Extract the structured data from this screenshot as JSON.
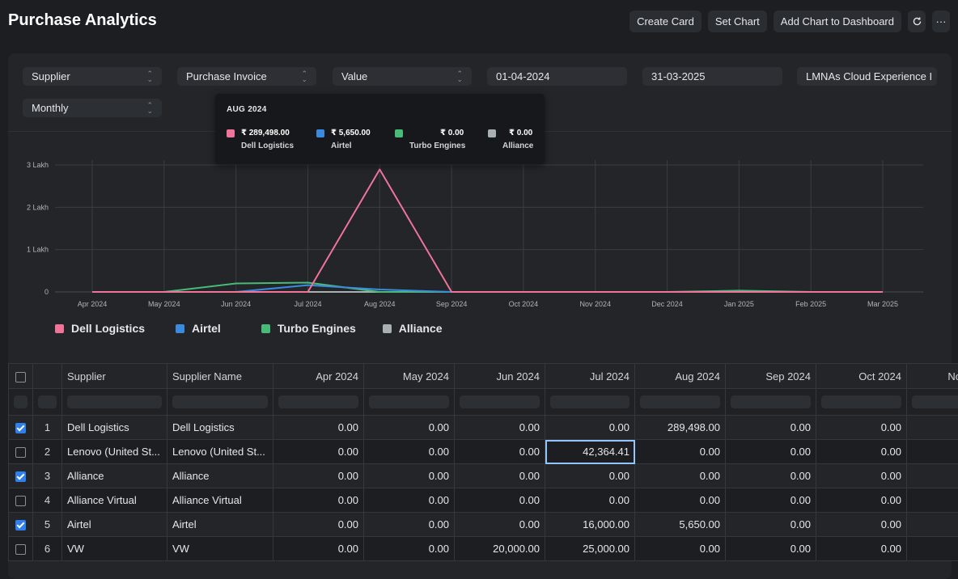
{
  "page": {
    "title": "Purchase Analytics"
  },
  "actions": {
    "create_card": "Create Card",
    "set_chart": "Set Chart",
    "add_chart": "Add Chart to Dashboard",
    "refresh_icon": "refresh-icon",
    "more": "···"
  },
  "filters": {
    "tree_type": "Supplier",
    "doc_type": "Purchase Invoice",
    "value_qty": "Value",
    "from_date": "01-04-2024",
    "to_date": "31-03-2025",
    "company": "LMNAs Cloud Experience I",
    "range": "Monthly"
  },
  "tooltip": {
    "title": "AUG 2024",
    "items": [
      {
        "value": "₹ 289,498.00",
        "name": "Dell Logistics",
        "color": "#f0739a"
      },
      {
        "value": "₹ 5,650.00",
        "name": "Airtel",
        "color": "#3a8be0"
      },
      {
        "value": "₹ 0.00",
        "name": "Turbo Engines",
        "color": "#48bb78"
      },
      {
        "value": "₹ 0.00",
        "name": "Alliance",
        "color": "#a8b0b0"
      }
    ]
  },
  "chart_data": {
    "type": "line",
    "x": [
      "Apr 2024",
      "May 2024",
      "Jun 2024",
      "Jul 2024",
      "Aug 2024",
      "Sep 2024",
      "Oct 2024",
      "Nov 2024",
      "Dec 2024",
      "Jan 2025",
      "Feb 2025",
      "Mar 2025"
    ],
    "y_ticks": [
      "0",
      "1 Lakh",
      "2 Lakh",
      "3 Lakh"
    ],
    "ylim": [
      0,
      300000
    ],
    "series": [
      {
        "name": "Dell Logistics",
        "color": "#f0739a",
        "values": [
          0,
          0,
          0,
          0,
          289498,
          0,
          0,
          0,
          0,
          0,
          0,
          0
        ]
      },
      {
        "name": "Airtel",
        "color": "#3a8be0",
        "values": [
          0,
          0,
          0,
          16000,
          5650,
          0,
          0,
          0,
          0,
          0,
          0,
          0
        ]
      },
      {
        "name": "Turbo Engines",
        "color": "#48bb78",
        "values": [
          0,
          0,
          20000,
          22000,
          0,
          0,
          0,
          0,
          0,
          3000,
          0,
          0
        ]
      },
      {
        "name": "Alliance",
        "color": "#a8b0b0",
        "values": [
          0,
          0,
          0,
          0,
          0,
          0,
          0,
          0,
          0,
          0,
          0,
          0
        ]
      }
    ],
    "grid": true,
    "legend": "bottom-left"
  },
  "table": {
    "columns": [
      "Supplier",
      "Supplier Name",
      "Apr 2024",
      "May 2024",
      "Jun 2024",
      "Jul 2024",
      "Aug 2024",
      "Sep 2024",
      "Oct 2024",
      "No"
    ],
    "rows": [
      {
        "checked": true,
        "idx": "1",
        "supplier": "Dell Logistics",
        "name": "Dell Logistics",
        "vals": [
          "0.00",
          "0.00",
          "0.00",
          "0.00",
          "289,498.00",
          "0.00",
          "0.00"
        ]
      },
      {
        "checked": false,
        "idx": "2",
        "supplier": "Lenovo (United St...",
        "name": "Lenovo (United St...",
        "vals": [
          "0.00",
          "0.00",
          "0.00",
          "42,364.41",
          "0.00",
          "0.00",
          "0.00"
        ]
      },
      {
        "checked": true,
        "idx": "3",
        "supplier": "Alliance",
        "name": "Alliance",
        "vals": [
          "0.00",
          "0.00",
          "0.00",
          "0.00",
          "0.00",
          "0.00",
          "0.00"
        ]
      },
      {
        "checked": false,
        "idx": "4",
        "supplier": "Alliance Virtual",
        "name": "Alliance Virtual",
        "vals": [
          "0.00",
          "0.00",
          "0.00",
          "0.00",
          "0.00",
          "0.00",
          "0.00"
        ]
      },
      {
        "checked": true,
        "idx": "5",
        "supplier": "Airtel",
        "name": "Airtel",
        "vals": [
          "0.00",
          "0.00",
          "0.00",
          "16,000.00",
          "5,650.00",
          "0.00",
          "0.00"
        ]
      },
      {
        "checked": false,
        "idx": "6",
        "supplier": "VW",
        "name": "VW",
        "vals": [
          "0.00",
          "0.00",
          "20,000.00",
          "25,000.00",
          "0.00",
          "0.00",
          "0.00"
        ]
      }
    ]
  }
}
